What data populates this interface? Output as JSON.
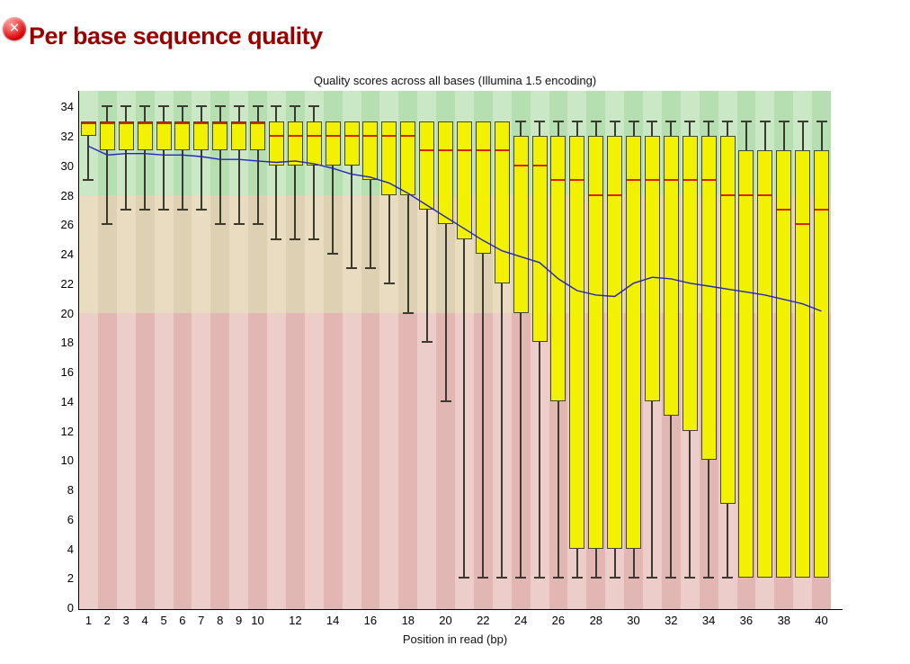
{
  "page": {
    "module_title": "Per base sequence quality",
    "module_status": "error",
    "status_icon_glyph": "✕"
  },
  "chart_data": {
    "type": "boxplot",
    "title": "Quality scores across all bases (Illumina 1.5 encoding)",
    "xlabel": "Position in read (bp)",
    "ylabel": "",
    "ylim": [
      0,
      35.1
    ],
    "grid": false,
    "y_ticks": [
      0,
      2,
      4,
      6,
      8,
      10,
      12,
      14,
      16,
      18,
      20,
      22,
      24,
      26,
      28,
      30,
      32,
      34
    ],
    "x_ticks": [
      {
        "pos": 1,
        "label": "1"
      },
      {
        "pos": 2,
        "label": "2"
      },
      {
        "pos": 3,
        "label": "3"
      },
      {
        "pos": 4,
        "label": "4"
      },
      {
        "pos": 5,
        "label": "5"
      },
      {
        "pos": 6,
        "label": "6"
      },
      {
        "pos": 7,
        "label": "7"
      },
      {
        "pos": 8,
        "label": "8"
      },
      {
        "pos": 9,
        "label": "9"
      },
      {
        "pos": 10,
        "label": "10"
      },
      {
        "pos": 12,
        "label": "12"
      },
      {
        "pos": 14,
        "label": "14"
      },
      {
        "pos": 16,
        "label": "16"
      },
      {
        "pos": 18,
        "label": "18"
      },
      {
        "pos": 20,
        "label": "20"
      },
      {
        "pos": 22,
        "label": "22"
      },
      {
        "pos": 24,
        "label": "24"
      },
      {
        "pos": 26,
        "label": "26"
      },
      {
        "pos": 28,
        "label": "28"
      },
      {
        "pos": 30,
        "label": "30"
      },
      {
        "pos": 32,
        "label": "32"
      },
      {
        "pos": 34,
        "label": "34"
      },
      {
        "pos": 36,
        "label": "36"
      },
      {
        "pos": 38,
        "label": "38"
      },
      {
        "pos": 40,
        "label": "40"
      }
    ],
    "zones": [
      {
        "name": "good-quality",
        "from": 28,
        "to": 35.1,
        "color_light": "#cbe8c6",
        "color_dark": "#b5deb1"
      },
      {
        "name": "ok-quality",
        "from": 20,
        "to": 28,
        "color_light": "#e9dcc1",
        "color_dark": "#ded1b3"
      },
      {
        "name": "poor-quality",
        "from": 0,
        "to": 20,
        "color_light": "#edcdca",
        "color_dark": "#e2b6b3"
      }
    ],
    "colors": {
      "box_fill": "#f2f200",
      "box_border": "#45453a",
      "whisker": "#3a3a30",
      "median": "#dd2200",
      "mean_line": "#2525bd",
      "header": "#990000"
    },
    "boxes": [
      {
        "pos": 1,
        "lo": 29,
        "q1": 32,
        "median": 33,
        "q3": 33,
        "hi": null,
        "mean": 31.3
      },
      {
        "pos": 2,
        "lo": 26,
        "q1": 31,
        "median": 33,
        "q3": 33,
        "hi": 34,
        "mean": 30.7
      },
      {
        "pos": 3,
        "lo": 27,
        "q1": 31,
        "median": 33,
        "q3": 33,
        "hi": 34,
        "mean": 30.8
      },
      {
        "pos": 4,
        "lo": 27,
        "q1": 31,
        "median": 33,
        "q3": 33,
        "hi": 34,
        "mean": 30.8
      },
      {
        "pos": 5,
        "lo": 27,
        "q1": 31,
        "median": 33,
        "q3": 33,
        "hi": 34,
        "mean": 30.7
      },
      {
        "pos": 6,
        "lo": 27,
        "q1": 31,
        "median": 33,
        "q3": 33,
        "hi": 34,
        "mean": 30.7
      },
      {
        "pos": 7,
        "lo": 27,
        "q1": 31,
        "median": 33,
        "q3": 33,
        "hi": 34,
        "mean": 30.6
      },
      {
        "pos": 8,
        "lo": 26,
        "q1": 31,
        "median": 33,
        "q3": 33,
        "hi": 34,
        "mean": 30.4
      },
      {
        "pos": 9,
        "lo": 26,
        "q1": 31,
        "median": 33,
        "q3": 33,
        "hi": 34,
        "mean": 30.4
      },
      {
        "pos": 10,
        "lo": 26,
        "q1": 31,
        "median": 33,
        "q3": 33,
        "hi": 34,
        "mean": 30.3
      },
      {
        "pos": 11,
        "lo": 25,
        "q1": 30,
        "median": 32,
        "q3": 33,
        "hi": 34,
        "mean": 30.2
      },
      {
        "pos": 12,
        "lo": 25,
        "q1": 30,
        "median": 32,
        "q3": 33,
        "hi": 34,
        "mean": 30.3
      },
      {
        "pos": 13,
        "lo": 25,
        "q1": 30,
        "median": 32,
        "q3": 33,
        "hi": 34,
        "mean": 30.1
      },
      {
        "pos": 14,
        "lo": 24,
        "q1": 30,
        "median": 32,
        "q3": 33,
        "hi": null,
        "mean": 29.8
      },
      {
        "pos": 15,
        "lo": 23,
        "q1": 30,
        "median": 32,
        "q3": 33,
        "hi": null,
        "mean": 29.4
      },
      {
        "pos": 16,
        "lo": 23,
        "q1": 29,
        "median": 32,
        "q3": 33,
        "hi": null,
        "mean": 29.2
      },
      {
        "pos": 17,
        "lo": 22,
        "q1": 28,
        "median": 32,
        "q3": 33,
        "hi": null,
        "mean": 28.8
      },
      {
        "pos": 18,
        "lo": 20,
        "q1": 28,
        "median": 32,
        "q3": 33,
        "hi": null,
        "mean": 28.1
      },
      {
        "pos": 19,
        "lo": 18,
        "q1": 27,
        "median": 31,
        "q3": 33,
        "hi": null,
        "mean": 27.3
      },
      {
        "pos": 20,
        "lo": 14,
        "q1": 26,
        "median": 31,
        "q3": 33,
        "hi": null,
        "mean": 26.5
      },
      {
        "pos": 21,
        "lo": 2,
        "q1": 25,
        "median": 31,
        "q3": 33,
        "hi": null,
        "mean": 25.7
      },
      {
        "pos": 22,
        "lo": 2,
        "q1": 24,
        "median": 31,
        "q3": 33,
        "hi": null,
        "mean": 24.9
      },
      {
        "pos": 23,
        "lo": 2,
        "q1": 22,
        "median": 31,
        "q3": 33,
        "hi": null,
        "mean": 24.2
      },
      {
        "pos": 24,
        "lo": 2,
        "q1": 20,
        "median": 30,
        "q3": 32,
        "hi": 33,
        "mean": 23.8
      },
      {
        "pos": 25,
        "lo": 2,
        "q1": 18,
        "median": 30,
        "q3": 32,
        "hi": 33,
        "mean": 23.4
      },
      {
        "pos": 26,
        "lo": 2,
        "q1": 14,
        "median": 29,
        "q3": 32,
        "hi": 33,
        "mean": 22.3
      },
      {
        "pos": 27,
        "lo": 2,
        "q1": 4,
        "median": 29,
        "q3": 32,
        "hi": 33,
        "mean": 21.5
      },
      {
        "pos": 28,
        "lo": 2,
        "q1": 4,
        "median": 28,
        "q3": 32,
        "hi": 33,
        "mean": 21.2
      },
      {
        "pos": 29,
        "lo": 2,
        "q1": 4,
        "median": 28,
        "q3": 32,
        "hi": 33,
        "mean": 21.1
      },
      {
        "pos": 30,
        "lo": 2,
        "q1": 4,
        "median": 29,
        "q3": 32,
        "hi": 33,
        "mean": 22.0
      },
      {
        "pos": 31,
        "lo": 2,
        "q1": 14,
        "median": 29,
        "q3": 32,
        "hi": 33,
        "mean": 22.4
      },
      {
        "pos": 32,
        "lo": 2,
        "q1": 13,
        "median": 29,
        "q3": 32,
        "hi": 33,
        "mean": 22.3
      },
      {
        "pos": 33,
        "lo": 2,
        "q1": 12,
        "median": 29,
        "q3": 32,
        "hi": 33,
        "mean": 22.0
      },
      {
        "pos": 34,
        "lo": 2,
        "q1": 10,
        "median": 29,
        "q3": 32,
        "hi": 33,
        "mean": 21.8
      },
      {
        "pos": 35,
        "lo": 2,
        "q1": 7,
        "median": 28,
        "q3": 32,
        "hi": 33,
        "mean": 21.6
      },
      {
        "pos": 36,
        "lo": null,
        "q1": 2,
        "median": 28,
        "q3": 31,
        "hi": 33,
        "mean": 21.4
      },
      {
        "pos": 37,
        "lo": null,
        "q1": 2,
        "median": 28,
        "q3": 31,
        "hi": 33,
        "mean": 21.2
      },
      {
        "pos": 38,
        "lo": null,
        "q1": 2,
        "median": 27,
        "q3": 31,
        "hi": 33,
        "mean": 20.9
      },
      {
        "pos": 39,
        "lo": null,
        "q1": 2,
        "median": 26,
        "q3": 31,
        "hi": 33,
        "mean": 20.6
      },
      {
        "pos": 40,
        "lo": null,
        "q1": 2,
        "median": 27,
        "q3": 31,
        "hi": 33,
        "mean": 20.1
      }
    ]
  }
}
